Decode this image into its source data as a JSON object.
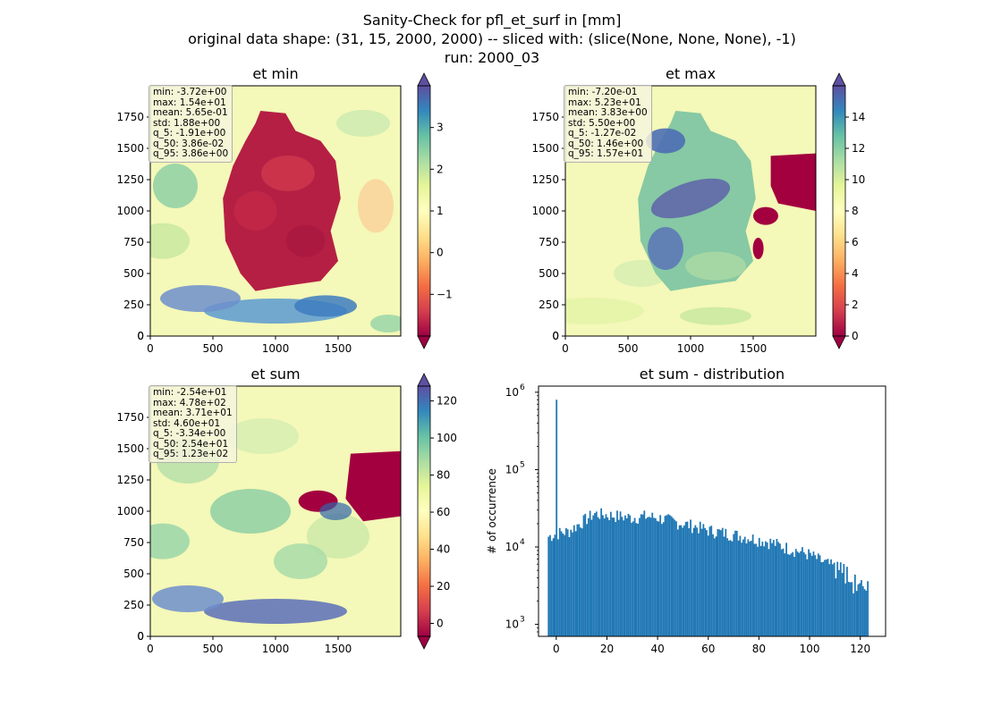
{
  "suptitle": [
    "Sanity-Check for pfl_et_surf in [mm]",
    "original data shape: (31, 15, 2000, 2000) -- sliced with: (slice(None, None, None), -1)",
    "run: 2000_03"
  ],
  "chart_data": [
    {
      "type": "heatmap",
      "title": "et min",
      "xlim": [
        0,
        2000
      ],
      "ylim": [
        0,
        2000
      ],
      "xticks": [
        0,
        500,
        1000,
        1500
      ],
      "yticks": [
        0,
        250,
        500,
        750,
        1000,
        1250,
        1500,
        1750
      ],
      "colorbar": {
        "min": -2,
        "max": 4,
        "ticks": [
          -1,
          0,
          1,
          2,
          3
        ],
        "cmap": "Spectral",
        "extend": "both"
      },
      "stats": [
        "min: -3.72e+00",
        "max: 1.54e+01",
        "mean: 5.65e-01",
        "std: 1.88e+00",
        "q_5: -1.91e+00",
        "q_50: 3.86e-02",
        "q_95: 3.86e+00"
      ]
    },
    {
      "type": "heatmap",
      "title": "et max",
      "xlim": [
        0,
        2000
      ],
      "ylim": [
        0,
        2000
      ],
      "xticks": [
        0,
        500,
        1000,
        1500
      ],
      "yticks": [
        0,
        250,
        500,
        750,
        1000,
        1250,
        1500,
        1750
      ],
      "colorbar": {
        "min": 0,
        "max": 16,
        "ticks": [
          0,
          2,
          4,
          6,
          8,
          10,
          12,
          14
        ],
        "cmap": "Spectral",
        "extend": "both"
      },
      "stats": [
        "min: -7.20e-01",
        "max: 5.23e+01",
        "mean: 3.83e+00",
        "std: 5.50e+00",
        "q_5: -1.27e-02",
        "q_50: 1.46e+00",
        "q_95: 1.57e+01"
      ]
    },
    {
      "type": "heatmap",
      "title": "et sum",
      "xlim": [
        0,
        2000
      ],
      "ylim": [
        0,
        2000
      ],
      "xticks": [
        0,
        500,
        1000,
        1500
      ],
      "yticks": [
        0,
        250,
        500,
        750,
        1000,
        1250,
        1500,
        1750
      ],
      "colorbar": {
        "min": -7,
        "max": 128,
        "ticks": [
          0,
          20,
          40,
          60,
          80,
          100,
          120
        ],
        "cmap": "Spectral",
        "extend": "both"
      },
      "stats": [
        "min: -2.54e+01",
        "max: 4.78e+02",
        "mean: 3.71e+01",
        "std: 4.60e+01",
        "q_5: -3.34e+00",
        "q_50: 2.54e+01",
        "q_95: 1.23e+02"
      ]
    },
    {
      "type": "bar",
      "title": "et sum - distribution",
      "xlabel": "",
      "ylabel": "# of occurrence",
      "xlim": [
        -7,
        130
      ],
      "xticks": [
        0,
        20,
        40,
        60,
        80,
        100,
        120
      ],
      "ylog": true,
      "ylim": [
        700,
        1200000
      ],
      "yticks": [
        {
          "value": 1000,
          "base": "10",
          "exp": "3"
        },
        {
          "value": 10000,
          "base": "10",
          "exp": "4"
        },
        {
          "value": 100000,
          "base": "10",
          "exp": "5"
        },
        {
          "value": 1000000,
          "base": "10",
          "exp": "6"
        }
      ],
      "bins": {
        "start": -3.34,
        "end": 123,
        "width": 0.63
      },
      "envelope": [
        [
          -3.34,
          13500
        ],
        [
          0,
          15000
        ],
        [
          5,
          16000
        ],
        [
          10,
          21000
        ],
        [
          15,
          27000
        ],
        [
          20,
          26000
        ],
        [
          25,
          25000
        ],
        [
          30,
          24000
        ],
        [
          35,
          25000
        ],
        [
          40,
          24000
        ],
        [
          45,
          22000
        ],
        [
          50,
          20000
        ],
        [
          55,
          18500
        ],
        [
          60,
          16500
        ],
        [
          65,
          15500
        ],
        [
          70,
          14500
        ],
        [
          75,
          13500
        ],
        [
          80,
          12500
        ],
        [
          85,
          11500
        ],
        [
          90,
          10000
        ],
        [
          95,
          9000
        ],
        [
          100,
          8000
        ],
        [
          105,
          6500
        ],
        [
          110,
          5500
        ],
        [
          115,
          4300
        ],
        [
          120,
          3300
        ],
        [
          123,
          3000
        ]
      ],
      "spike": {
        "x": 0,
        "value": 800000
      },
      "color": "#1f77b4"
    }
  ]
}
